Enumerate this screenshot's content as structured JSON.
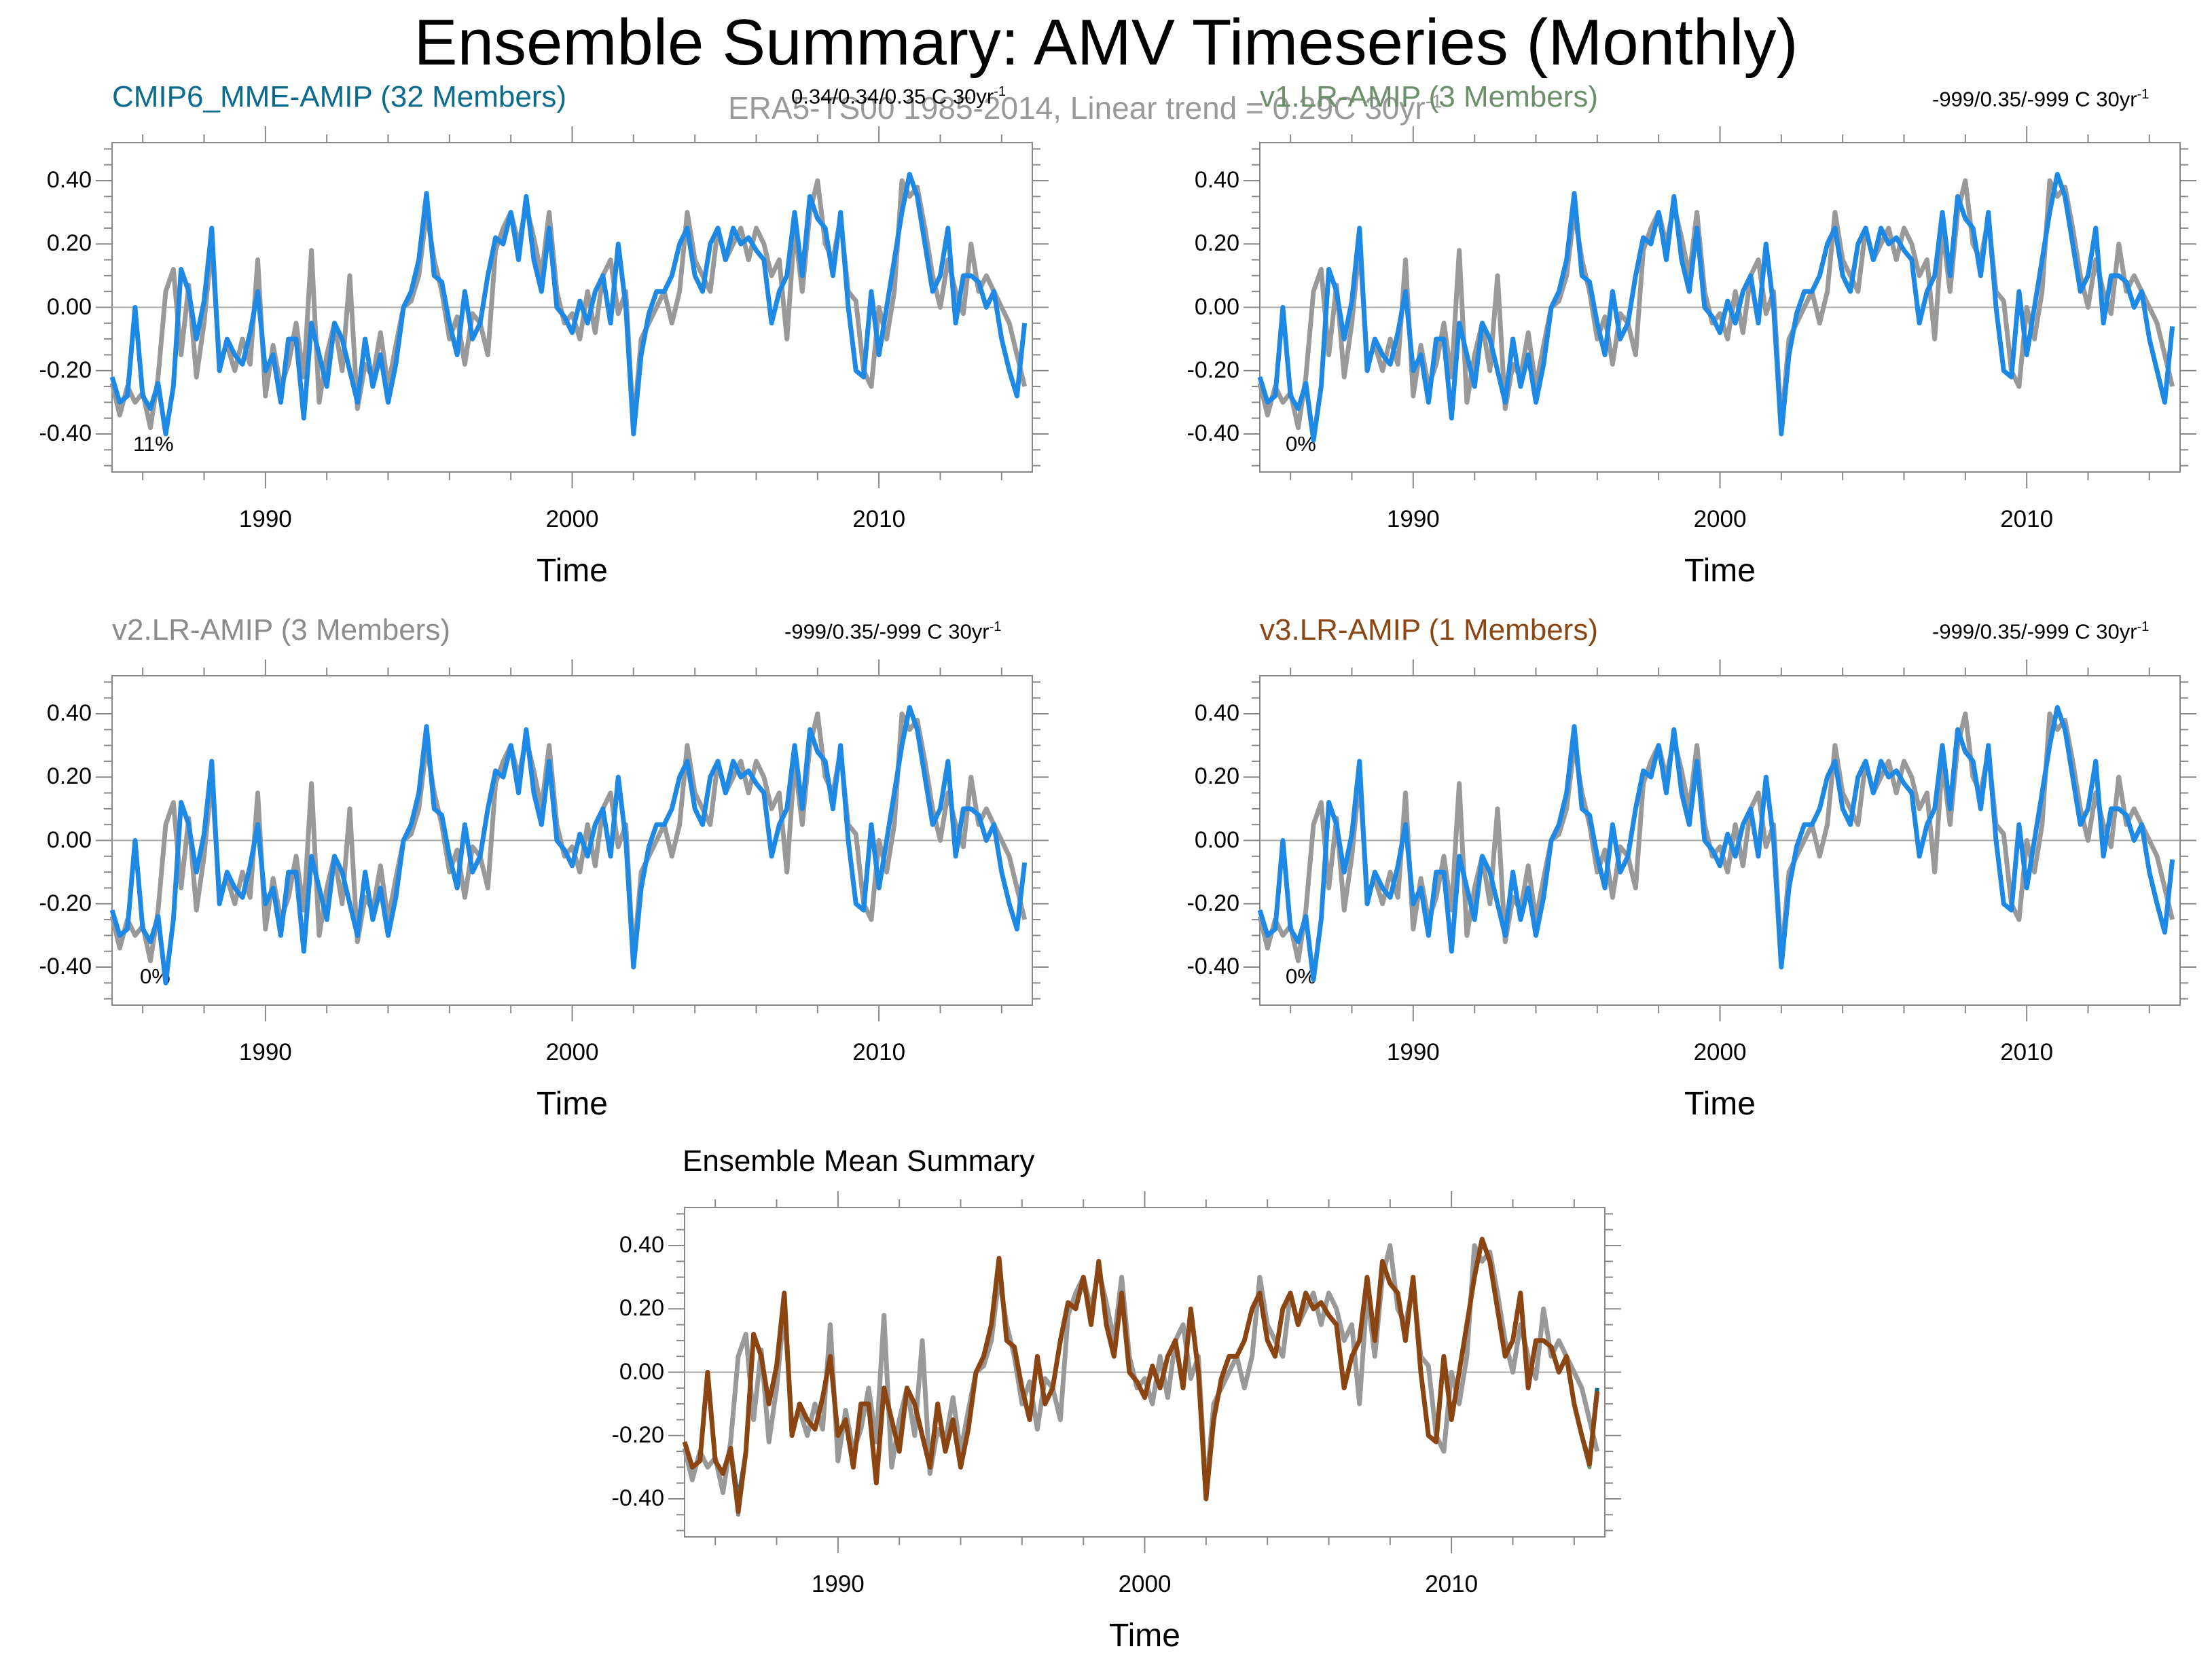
{
  "figure": {
    "title": "Ensemble Summary: AMV Timeseries (Monthly)",
    "subtitle": "ERA5-TS00 1985-2014, Linear trend = 0.29C 30yr",
    "colors": {
      "observation": "#999999",
      "model": "#1e88e5",
      "ensemble_mean": "#8b4513",
      "mme_title": "#0a6b8f",
      "v1_title": "#6b8e6b",
      "v2_title": "#8c8c8c",
      "v3_title": "#8b4513"
    }
  },
  "panels": [
    {
      "title": "CMIP6_MME-AMIP (32 Members)",
      "stat": "0.34/0.34/0.35 C 30yr",
      "stat_sup": "-1",
      "pct": "11%",
      "xlabel": "Time"
    },
    {
      "title": "v1.LR-AMIP (3 Members)",
      "stat": "-999/0.35/-999 C 30yr",
      "stat_sup": "-1",
      "pct": "0%",
      "xlabel": "Time"
    },
    {
      "title": "v2.LR-AMIP (3 Members)",
      "stat": "-999/0.35/-999 C 30yr",
      "stat_sup": "-1",
      "pct": "0%",
      "xlabel": "Time"
    },
    {
      "title": "v3.LR-AMIP (1 Members)",
      "stat": "-999/0.35/-999 C 30yr",
      "stat_sup": "-1",
      "pct": "0%",
      "xlabel": "Time"
    },
    {
      "title": "Ensemble Mean Summary",
      "stat": "",
      "stat_sup": "",
      "pct": "",
      "xlabel": "Time"
    }
  ],
  "chart_data": {
    "type": "line",
    "x_unit": "year",
    "xlim": [
      1985,
      2015
    ],
    "ylim": [
      -0.52,
      0.52
    ],
    "yticks": [
      "0.40",
      "0.20",
      "0.00",
      "-0.20",
      "-0.40"
    ],
    "xticks": [
      "1990",
      "2000",
      "2010"
    ],
    "x": [
      1985.0,
      1985.25,
      1985.5,
      1985.75,
      1986.0,
      1986.25,
      1986.5,
      1986.75,
      1987.0,
      1987.25,
      1987.5,
      1987.75,
      1988.0,
      1988.25,
      1988.5,
      1988.75,
      1989.0,
      1989.25,
      1989.5,
      1989.75,
      1990.0,
      1990.25,
      1990.5,
      1990.75,
      1991.0,
      1991.25,
      1991.5,
      1991.75,
      1992.0,
      1992.25,
      1992.5,
      1992.75,
      1993.0,
      1993.25,
      1993.5,
      1993.75,
      1994.0,
      1994.25,
      1994.5,
      1994.75,
      1995.0,
      1995.25,
      1995.5,
      1995.75,
      1996.0,
      1996.25,
      1996.5,
      1996.75,
      1997.0,
      1997.25,
      1997.5,
      1997.75,
      1998.0,
      1998.25,
      1998.5,
      1998.75,
      1999.0,
      1999.25,
      1999.5,
      1999.75,
      2000.0,
      2000.25,
      2000.5,
      2000.75,
      2001.0,
      2001.25,
      2001.5,
      2001.75,
      2002.0,
      2002.25,
      2002.5,
      2002.75,
      2003.0,
      2003.25,
      2003.5,
      2003.75,
      2004.0,
      2004.25,
      2004.5,
      2004.75,
      2005.0,
      2005.25,
      2005.5,
      2005.75,
      2006.0,
      2006.25,
      2006.5,
      2006.75,
      2007.0,
      2007.25,
      2007.5,
      2007.75,
      2008.0,
      2008.25,
      2008.5,
      2008.75,
      2009.0,
      2009.25,
      2009.5,
      2009.75,
      2010.0,
      2010.25,
      2010.5,
      2010.75,
      2011.0,
      2011.25,
      2011.5,
      2011.75,
      2012.0,
      2012.25,
      2012.5,
      2012.75,
      2013.0,
      2013.25,
      2013.5,
      2013.75,
      2014.0,
      2014.25,
      2014.5,
      2014.75
    ],
    "series": [
      {
        "name": "ERA5-TS00",
        "values": [
          -0.24,
          -0.34,
          -0.25,
          -0.3,
          -0.27,
          -0.38,
          -0.22,
          0.05,
          0.12,
          -0.15,
          0.07,
          -0.22,
          -0.05,
          0.2,
          -0.17,
          -0.12,
          -0.2,
          -0.1,
          -0.18,
          0.15,
          -0.28,
          -0.12,
          -0.25,
          -0.18,
          -0.05,
          -0.22,
          0.18,
          -0.3,
          -0.15,
          -0.05,
          -0.2,
          0.1,
          -0.32,
          -0.18,
          -0.22,
          -0.08,
          -0.25,
          -0.12,
          0.0,
          0.02,
          0.1,
          0.3,
          0.15,
          0.05,
          -0.1,
          -0.03,
          -0.18,
          -0.02,
          -0.05,
          -0.15,
          0.18,
          0.25,
          0.3,
          0.2,
          0.32,
          0.22,
          0.1,
          0.3,
          0.05,
          -0.05,
          -0.02,
          -0.1,
          0.05,
          -0.08,
          0.1,
          0.15,
          -0.02,
          0.05,
          -0.38,
          -0.1,
          -0.05,
          0.0,
          0.05,
          -0.05,
          0.05,
          0.3,
          0.15,
          0.1,
          0.05,
          0.25,
          0.15,
          0.2,
          0.25,
          0.15,
          0.25,
          0.2,
          0.1,
          0.15,
          -0.1,
          0.25,
          0.05,
          0.3,
          0.4,
          0.2,
          0.15,
          0.28,
          0.05,
          0.02,
          -0.2,
          -0.25,
          0.0,
          -0.1,
          0.05,
          0.4,
          0.35,
          0.38,
          0.25,
          0.1,
          0.0,
          0.15,
          0.05,
          -0.02,
          0.2,
          0.05,
          0.1,
          0.05,
          0.0,
          -0.05,
          -0.15,
          -0.25
        ]
      },
      {
        "name": "CMIP6_MME-AMIP",
        "values": [
          -0.22,
          -0.3,
          -0.28,
          0.0,
          -0.28,
          -0.32,
          -0.24,
          -0.4,
          -0.25,
          0.12,
          0.05,
          -0.1,
          0.02,
          0.25,
          -0.2,
          -0.1,
          -0.15,
          -0.18,
          -0.08,
          0.05,
          -0.2,
          -0.15,
          -0.3,
          -0.1,
          -0.1,
          -0.35,
          -0.05,
          -0.15,
          -0.25,
          -0.05,
          -0.1,
          -0.2,
          -0.3,
          -0.1,
          -0.25,
          -0.15,
          -0.3,
          -0.18,
          0.0,
          0.05,
          0.15,
          0.36,
          0.1,
          0.08,
          -0.05,
          -0.15,
          0.05,
          -0.1,
          -0.05,
          0.1,
          0.22,
          0.2,
          0.3,
          0.15,
          0.35,
          0.15,
          0.05,
          0.25,
          0.0,
          -0.03,
          -0.08,
          0.02,
          -0.05,
          0.05,
          0.1,
          -0.05,
          0.2,
          0.0,
          -0.4,
          -0.15,
          -0.02,
          0.05,
          0.05,
          0.1,
          0.2,
          0.25,
          0.1,
          0.05,
          0.2,
          0.25,
          0.15,
          0.25,
          0.2,
          0.22,
          0.18,
          0.15,
          -0.05,
          0.05,
          0.1,
          0.3,
          0.1,
          0.35,
          0.28,
          0.25,
          0.1,
          0.3,
          0.0,
          -0.2,
          -0.22,
          0.05,
          -0.15,
          0.0,
          0.15,
          0.3,
          0.42,
          0.35,
          0.2,
          0.05,
          0.1,
          0.25,
          -0.05,
          0.1,
          0.1,
          0.08,
          0.0,
          0.05,
          -0.1,
          -0.2,
          -0.28,
          -0.05
        ]
      },
      {
        "name": "v1.LR-AMIP",
        "values": [
          -0.22,
          -0.3,
          -0.28,
          0.0,
          -0.28,
          -0.32,
          -0.24,
          -0.42,
          -0.25,
          0.12,
          0.05,
          -0.1,
          0.02,
          0.25,
          -0.2,
          -0.1,
          -0.15,
          -0.18,
          -0.08,
          0.05,
          -0.2,
          -0.15,
          -0.3,
          -0.1,
          -0.1,
          -0.35,
          -0.05,
          -0.15,
          -0.25,
          -0.05,
          -0.1,
          -0.2,
          -0.3,
          -0.1,
          -0.25,
          -0.15,
          -0.3,
          -0.18,
          0.0,
          0.05,
          0.15,
          0.36,
          0.1,
          0.08,
          -0.05,
          -0.15,
          0.05,
          -0.1,
          -0.05,
          0.1,
          0.22,
          0.2,
          0.3,
          0.15,
          0.35,
          0.15,
          0.05,
          0.25,
          0.0,
          -0.03,
          -0.08,
          0.02,
          -0.05,
          0.05,
          0.1,
          -0.05,
          0.2,
          0.0,
          -0.4,
          -0.15,
          -0.02,
          0.05,
          0.05,
          0.1,
          0.2,
          0.25,
          0.1,
          0.05,
          0.2,
          0.25,
          0.15,
          0.25,
          0.2,
          0.22,
          0.18,
          0.15,
          -0.05,
          0.05,
          0.1,
          0.3,
          0.1,
          0.35,
          0.28,
          0.25,
          0.1,
          0.3,
          0.0,
          -0.2,
          -0.22,
          0.05,
          -0.15,
          0.0,
          0.15,
          0.3,
          0.42,
          0.35,
          0.2,
          0.05,
          0.1,
          0.25,
          -0.05,
          0.1,
          0.1,
          0.08,
          0.0,
          0.05,
          -0.1,
          -0.2,
          -0.3,
          -0.06
        ]
      },
      {
        "name": "v2.LR-AMIP",
        "values": [
          -0.22,
          -0.3,
          -0.28,
          0.0,
          -0.28,
          -0.32,
          -0.24,
          -0.45,
          -0.25,
          0.12,
          0.05,
          -0.1,
          0.02,
          0.25,
          -0.2,
          -0.1,
          -0.15,
          -0.18,
          -0.08,
          0.05,
          -0.2,
          -0.15,
          -0.3,
          -0.1,
          -0.1,
          -0.35,
          -0.05,
          -0.15,
          -0.25,
          -0.05,
          -0.1,
          -0.2,
          -0.3,
          -0.1,
          -0.25,
          -0.15,
          -0.3,
          -0.18,
          0.0,
          0.05,
          0.15,
          0.36,
          0.1,
          0.08,
          -0.05,
          -0.15,
          0.05,
          -0.1,
          -0.05,
          0.1,
          0.22,
          0.2,
          0.3,
          0.15,
          0.35,
          0.15,
          0.05,
          0.25,
          0.0,
          -0.03,
          -0.08,
          0.02,
          -0.05,
          0.05,
          0.1,
          -0.05,
          0.2,
          0.0,
          -0.4,
          -0.15,
          -0.02,
          0.05,
          0.05,
          0.1,
          0.2,
          0.25,
          0.1,
          0.05,
          0.2,
          0.25,
          0.15,
          0.25,
          0.2,
          0.22,
          0.18,
          0.15,
          -0.05,
          0.05,
          0.1,
          0.3,
          0.1,
          0.35,
          0.28,
          0.25,
          0.1,
          0.3,
          0.0,
          -0.2,
          -0.22,
          0.05,
          -0.15,
          0.0,
          0.15,
          0.3,
          0.42,
          0.35,
          0.2,
          0.05,
          0.1,
          0.25,
          -0.05,
          0.1,
          0.1,
          0.08,
          0.0,
          0.05,
          -0.1,
          -0.2,
          -0.28,
          -0.07
        ]
      },
      {
        "name": "v3.LR-AMIP",
        "values": [
          -0.22,
          -0.3,
          -0.28,
          0.0,
          -0.28,
          -0.32,
          -0.24,
          -0.44,
          -0.25,
          0.12,
          0.05,
          -0.1,
          0.02,
          0.25,
          -0.2,
          -0.1,
          -0.15,
          -0.18,
          -0.08,
          0.05,
          -0.2,
          -0.15,
          -0.3,
          -0.1,
          -0.1,
          -0.35,
          -0.05,
          -0.15,
          -0.25,
          -0.05,
          -0.1,
          -0.2,
          -0.3,
          -0.1,
          -0.25,
          -0.15,
          -0.3,
          -0.18,
          0.0,
          0.05,
          0.15,
          0.36,
          0.1,
          0.08,
          -0.05,
          -0.15,
          0.05,
          -0.1,
          -0.05,
          0.1,
          0.22,
          0.2,
          0.3,
          0.15,
          0.35,
          0.15,
          0.05,
          0.25,
          0.0,
          -0.03,
          -0.08,
          0.02,
          -0.05,
          0.05,
          0.1,
          -0.05,
          0.2,
          0.0,
          -0.4,
          -0.15,
          -0.02,
          0.05,
          0.05,
          0.1,
          0.2,
          0.25,
          0.1,
          0.05,
          0.2,
          0.25,
          0.15,
          0.25,
          0.2,
          0.22,
          0.18,
          0.15,
          -0.05,
          0.05,
          0.1,
          0.3,
          0.1,
          0.35,
          0.28,
          0.25,
          0.1,
          0.3,
          0.0,
          -0.2,
          -0.22,
          0.05,
          -0.15,
          0.0,
          0.15,
          0.3,
          0.42,
          0.35,
          0.2,
          0.05,
          0.1,
          0.25,
          -0.05,
          0.1,
          0.1,
          0.08,
          0.0,
          0.05,
          -0.1,
          -0.2,
          -0.29,
          -0.06
        ]
      }
    ],
    "ensemble_mean_series": [
      "CMIP6_MME-AMIP",
      "v1.LR-AMIP",
      "v2.LR-AMIP",
      "v3.LR-AMIP"
    ]
  }
}
